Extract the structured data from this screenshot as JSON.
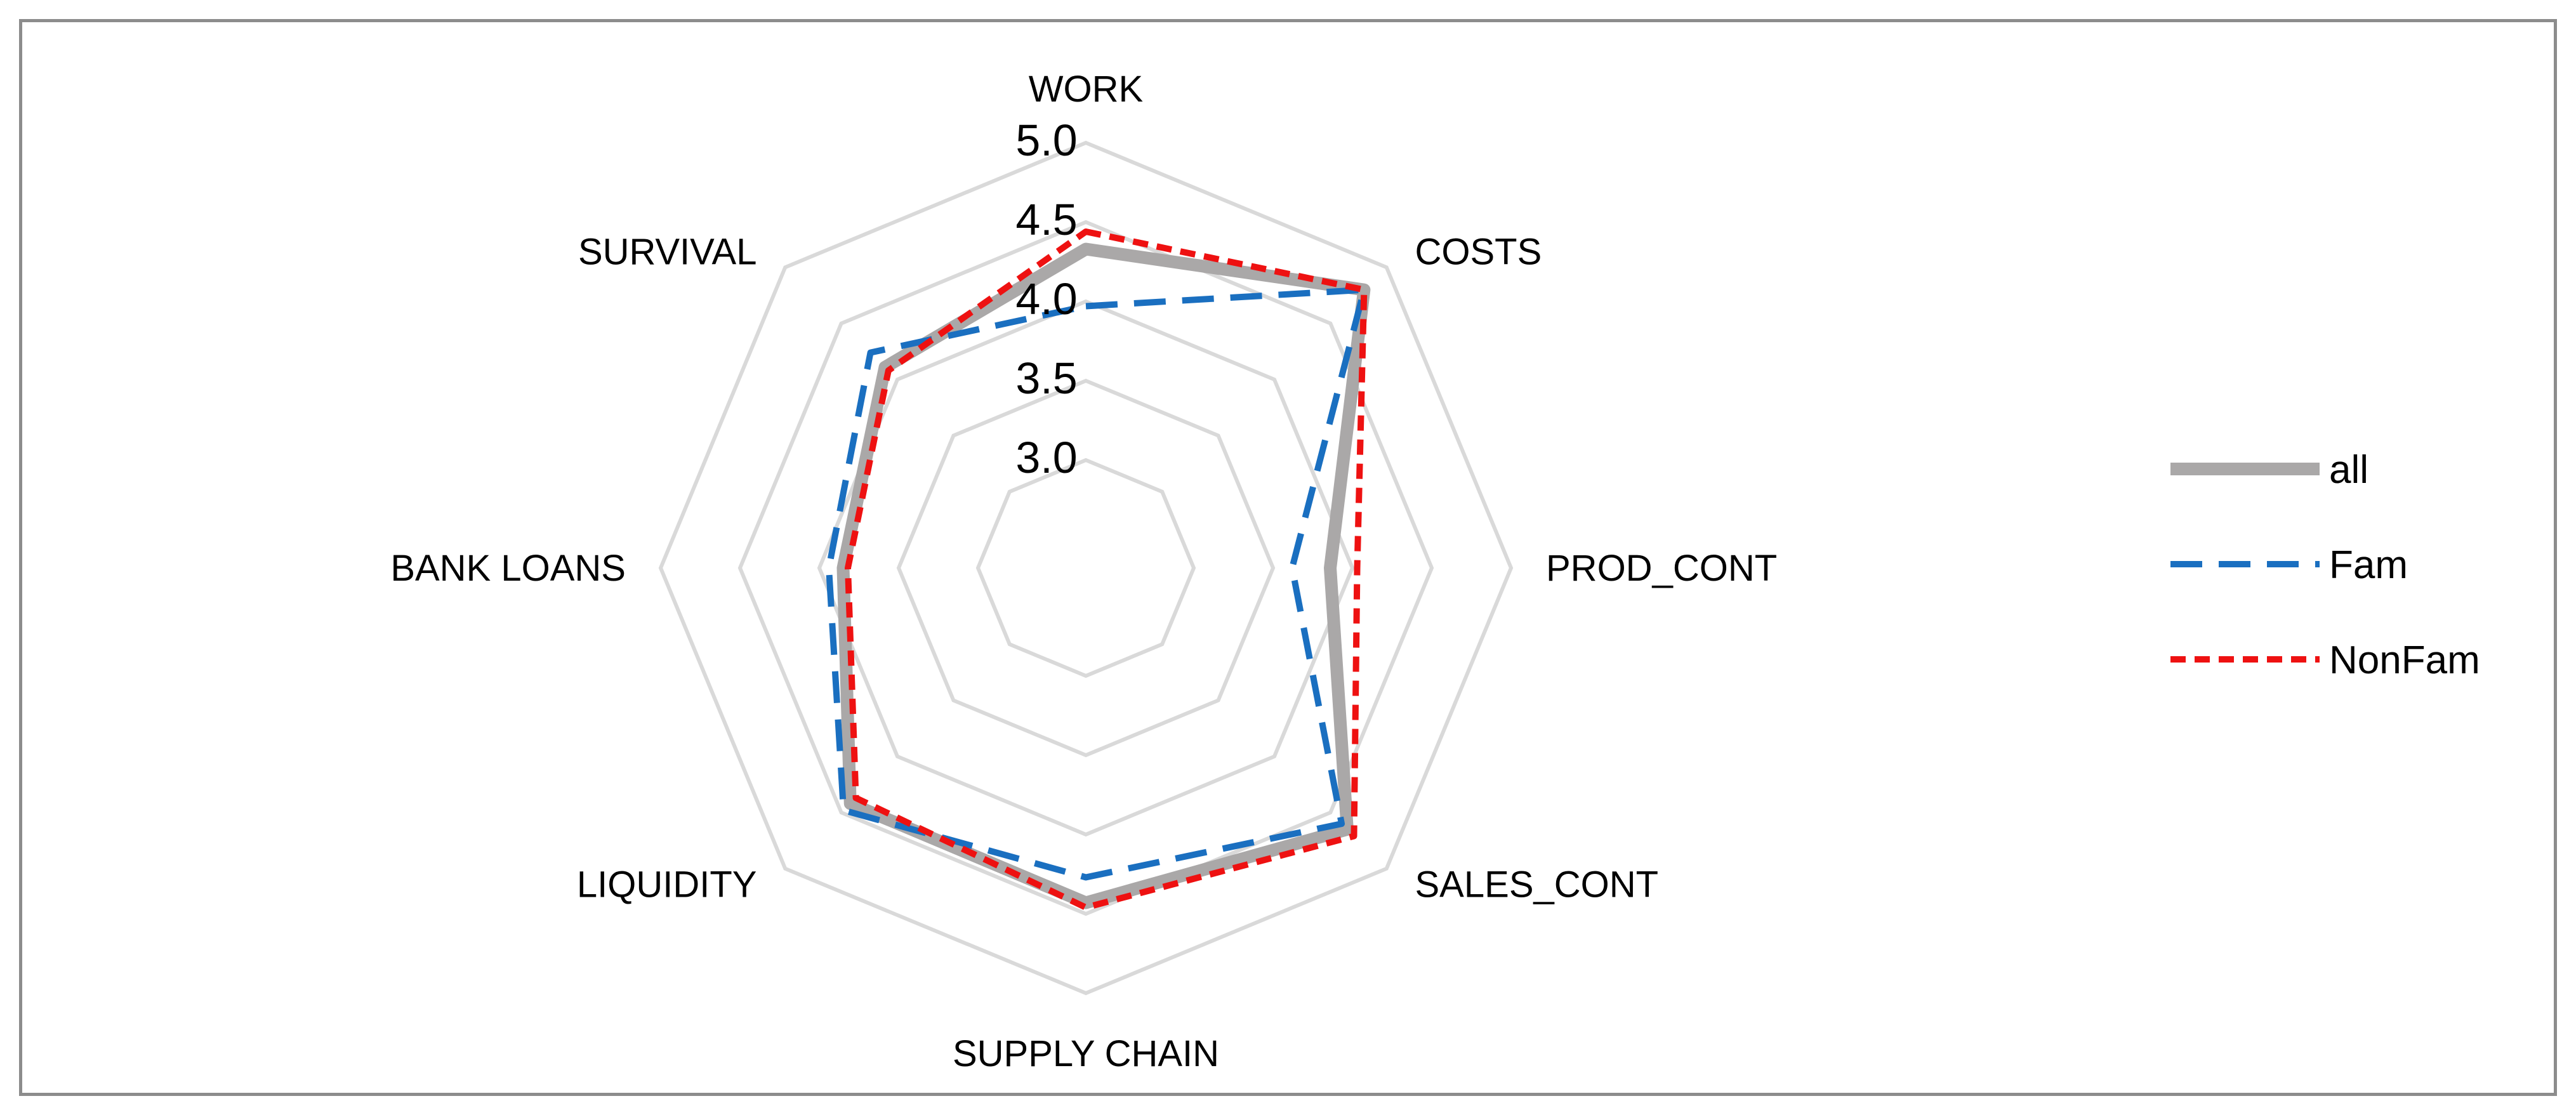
{
  "chart_data": {
    "type": "radar",
    "title": "",
    "categories": [
      "WORK",
      "COSTS",
      "PROD_CONT",
      "SALES_CONT",
      "SUPPLY CHAIN",
      "LIQUIDITY",
      "BANK LOANS",
      "SURVIVAL"
    ],
    "rlim": [
      3.0,
      5.0
    ],
    "ticks": [
      "3.0",
      "3.5",
      "4.0",
      "4.5",
      "5.0"
    ],
    "grid": true,
    "legend_position": "right",
    "series": [
      {
        "name": "all",
        "color": "#aaa8a8",
        "style": "solid",
        "values": [
          4.33,
          4.8,
          3.86,
          4.65,
          4.43,
          4.42,
          3.85,
          4.11
        ]
      },
      {
        "name": "Fam",
        "color": "#1a6fc0",
        "style": "dashed",
        "values": [
          3.97,
          4.8,
          3.62,
          4.6,
          4.27,
          4.48,
          3.94,
          4.24
        ]
      },
      {
        "name": "NonFam",
        "color": "#ee1111",
        "style": "dotted",
        "values": [
          4.44,
          4.8,
          4.03,
          4.71,
          4.46,
          4.37,
          3.82,
          4.08
        ]
      }
    ]
  }
}
